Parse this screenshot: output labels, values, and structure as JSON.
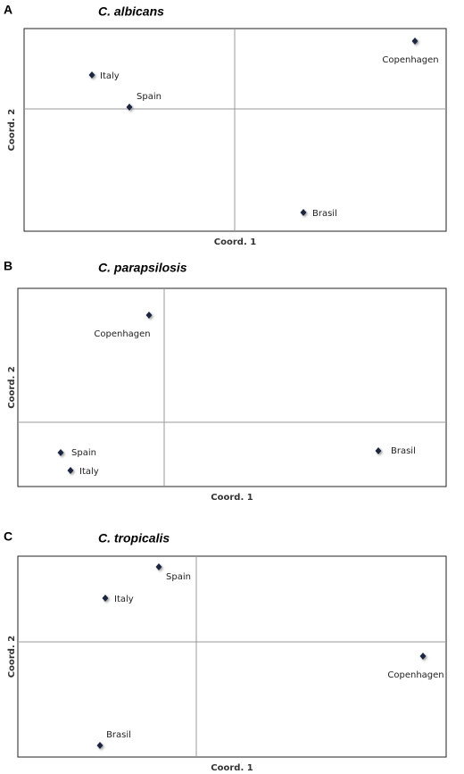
{
  "chart_data": [
    {
      "type": "scatter",
      "panel": "A",
      "title": "C. albicans",
      "xlabel": "Coord. 1",
      "ylabel": "Coord. 2",
      "point_labels": [
        "Copenhagen",
        "Italy",
        "Spain",
        "Brasil"
      ],
      "x": [
        2.02,
        -1.6,
        -1.18,
        0.77
      ],
      "values": [
        0.76,
        0.38,
        0.02,
        -1.16
      ],
      "xlim": [
        -2.36,
        2.37
      ],
      "ylim": [
        -1.37,
        0.9
      ],
      "zero_lines": true,
      "color": "#1a2540"
    },
    {
      "type": "scatter",
      "panel": "B",
      "title": "C. parapsilosis",
      "xlabel": "Coord. 1",
      "ylabel": "Coord. 2",
      "point_labels": [
        "Copenhagen",
        "Spain",
        "Italy",
        "Brasil"
      ],
      "x": [
        -0.17,
        -1.16,
        -1.05,
        2.4
      ],
      "values": [
        1.2,
        -0.34,
        -0.54,
        -0.32
      ],
      "xlim": [
        -1.64,
        3.16
      ],
      "ylim": [
        -0.72,
        1.5
      ],
      "zero_lines": true,
      "color": "#1a2540"
    },
    {
      "type": "scatter",
      "panel": "C",
      "title": "C. tropicalis",
      "xlabel": "Coord. 1",
      "ylabel": "Coord. 2",
      "point_labels": [
        "Spain",
        "Italy",
        "Copenhagen",
        "Brasil"
      ],
      "x": [
        -0.42,
        -1.02,
        2.54,
        -1.08
      ],
      "values": [
        0.84,
        0.49,
        -0.16,
        -1.16
      ],
      "xlim": [
        -2.0,
        2.8
      ],
      "ylim": [
        -1.29,
        0.96
      ],
      "zero_lines": true,
      "color": "#1a2540"
    }
  ]
}
